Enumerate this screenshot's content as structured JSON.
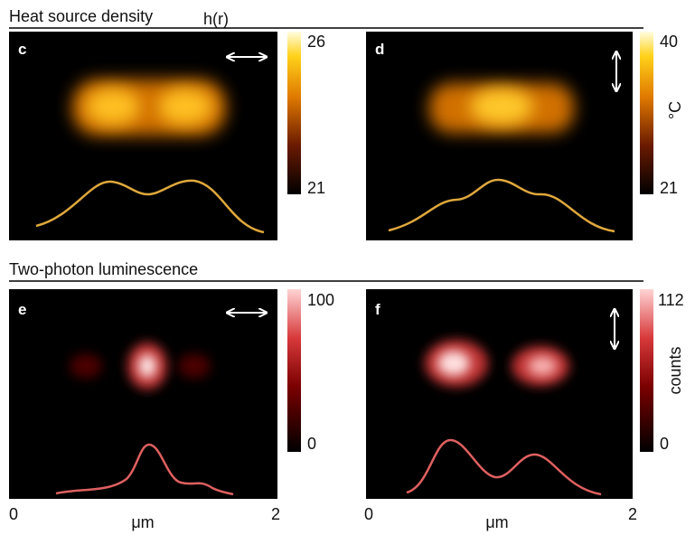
{
  "sections": [
    {
      "title": "Heat source density",
      "symbol": "h(r)"
    },
    {
      "title": "Two-photon luminescence"
    }
  ],
  "panels": [
    {
      "label": "c",
      "colorbar": {
        "max": 26,
        "min": 21
      }
    },
    {
      "label": "d",
      "colorbar": {
        "max": 40,
        "min": 21,
        "unit": "°C"
      }
    },
    {
      "label": "e",
      "colorbar": {
        "max": 100,
        "min": 0
      }
    },
    {
      "label": "f",
      "colorbar": {
        "max": 112,
        "min": 0,
        "unit": "counts"
      }
    }
  ],
  "x_axes": [
    {
      "start": 0,
      "end": 2,
      "unit": "μm"
    },
    {
      "start": 0,
      "end": 2,
      "unit": "μm"
    }
  ]
}
